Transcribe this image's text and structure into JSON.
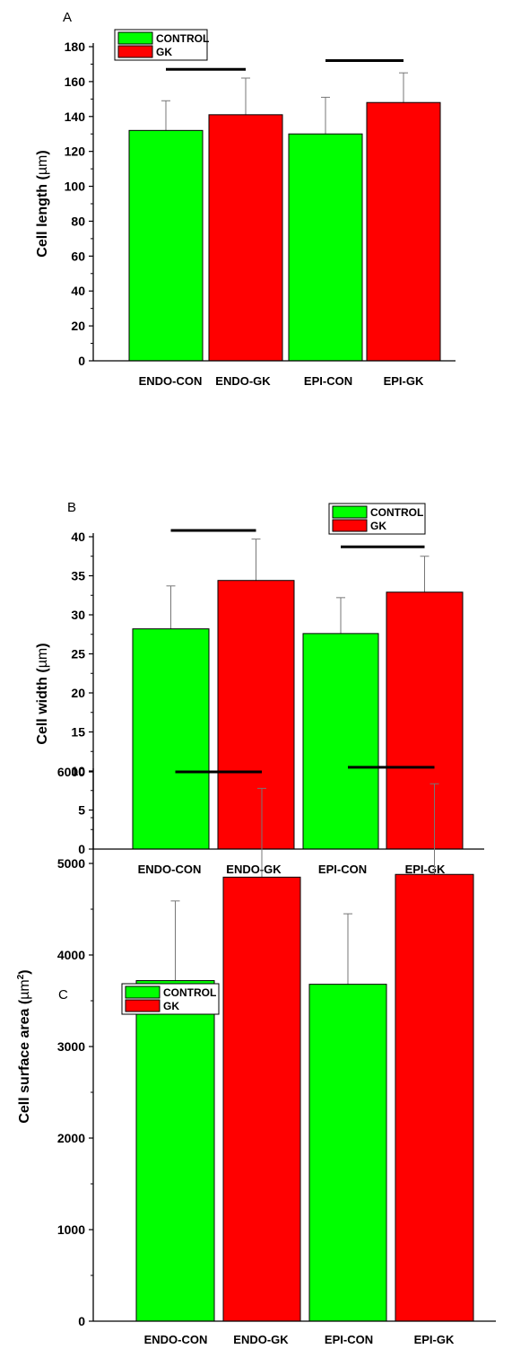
{
  "colors": {
    "control": "#00ff00",
    "gk": "#ff0000",
    "axis": "#000000",
    "error": "#777777"
  },
  "chart_data": [
    {
      "type": "bar",
      "panel": "A",
      "ylabel": "Cell length (µm)",
      "ylabel_plain": "Cell length (",
      "ylabel_unit": "µm",
      "ylabel_close": ")",
      "ylim": [
        0,
        180
      ],
      "yticks": [
        0,
        20,
        40,
        60,
        80,
        100,
        120,
        140,
        160,
        180
      ],
      "categories": [
        "ENDO-CON",
        "ENDO-GK",
        "EPI-CON",
        "EPI-GK"
      ],
      "values": [
        132,
        141,
        130,
        148
      ],
      "errors": [
        17,
        21,
        21,
        17
      ],
      "bar_groups": [
        "CONTROL",
        "GK",
        "CONTROL",
        "GK"
      ],
      "legend": [
        "CONTROL",
        "GK"
      ],
      "legend_position": "top-left",
      "significance_lines": [
        {
          "from": "ENDO-CON",
          "to": "ENDO-GK",
          "y": 167
        },
        {
          "from": "EPI-CON",
          "to": "EPI-GK",
          "y": 172
        }
      ]
    },
    {
      "type": "bar",
      "panel": "B",
      "ylabel": "Cell width (µm)",
      "ylabel_plain": "Cell width (",
      "ylabel_unit": "µm",
      "ylabel_close": ")",
      "ylim": [
        0,
        40
      ],
      "yticks": [
        0,
        5,
        10,
        15,
        20,
        25,
        30,
        35,
        40
      ],
      "categories": [
        "ENDO-CON",
        "ENDO-GK",
        "EPI-CON",
        "EPI-GK"
      ],
      "values": [
        28.2,
        34.4,
        27.6,
        32.9
      ],
      "errors": [
        5.5,
        5.3,
        4.6,
        4.6
      ],
      "bar_groups": [
        "CONTROL",
        "GK",
        "CONTROL",
        "GK"
      ],
      "legend": [
        "CONTROL",
        "GK"
      ],
      "legend_position": "top-right",
      "significance_lines": [
        {
          "from": "ENDO-CON",
          "to": "ENDO-GK",
          "y": 40.8
        },
        {
          "from": "EPI-CON",
          "to": "EPI-GK",
          "y": 38.7
        }
      ]
    },
    {
      "type": "bar",
      "panel": "C",
      "ylabel": "Cell surface area (µm2)",
      "ylabel_plain": "Cell surface area (",
      "ylabel_unit": "µm",
      "ylabel_sup": "2",
      "ylabel_close": ")",
      "ylim": [
        0,
        6000
      ],
      "yticks": [
        0,
        1000,
        2000,
        3000,
        4000,
        5000,
        6000
      ],
      "categories": [
        "ENDO-CON",
        "ENDO-GK",
        "EPI-CON",
        "EPI-GK"
      ],
      "values": [
        3720,
        4850,
        3680,
        4880
      ],
      "errors": [
        870,
        970,
        770,
        990
      ],
      "bar_groups": [
        "CONTROL",
        "GK",
        "CONTROL",
        "GK"
      ],
      "legend": [
        "CONTROL",
        "GK"
      ],
      "legend_position": "top-left",
      "significance_lines": [
        {
          "from": "ENDO-CON",
          "to": "ENDO-GK",
          "y": 6000
        },
        {
          "from": "EPI-CON",
          "to": "EPI-GK",
          "y": 6050
        }
      ]
    }
  ]
}
